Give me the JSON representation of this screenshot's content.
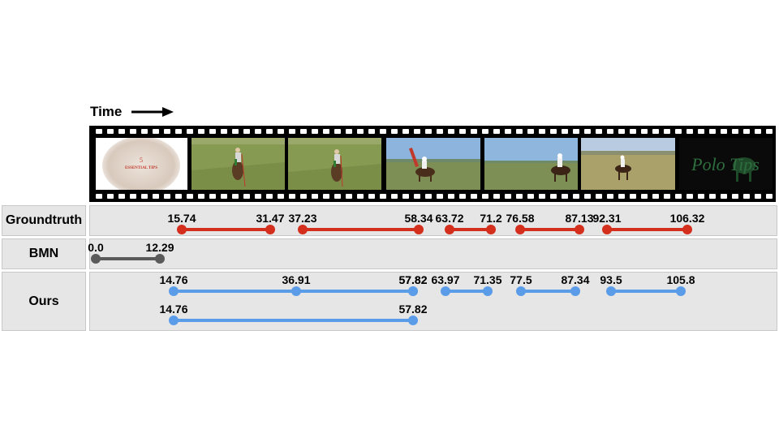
{
  "header": {
    "time_label": "Time"
  },
  "rows": [
    {
      "label": "Groundtruth",
      "color": "#d42e1d",
      "segments": [
        [
          [
            15.74,
            31.47
          ],
          [
            37.23,
            58.34
          ],
          [
            63.72,
            71.2
          ],
          [
            76.58,
            87.13
          ],
          [
            92.31,
            106.32
          ]
        ]
      ]
    },
    {
      "label": "BMN",
      "color": "#5a5a5a",
      "segments": [
        [
          [
            0.0,
            12.29
          ]
        ]
      ]
    },
    {
      "label": "Ours",
      "color": "#5b9ce8",
      "segments": [
        [
          [
            14.76,
            57.82
          ],
          [
            36.91,
            57.82
          ],
          [
            63.97,
            71.35
          ],
          [
            77.5,
            87.34
          ],
          [
            93.5,
            105.8
          ]
        ],
        [
          [
            14.76,
            57.82
          ]
        ]
      ]
    }
  ],
  "segment_labels": {
    "Groundtruth": [
      [
        "15.74",
        "31.47"
      ],
      [
        "37.23",
        "58.34"
      ],
      [
        "63.72",
        "71.2"
      ],
      [
        "76.58",
        "87.13"
      ],
      [
        "92.31",
        "106.32"
      ]
    ],
    "BMN": [
      [
        "0.0",
        "12.29"
      ]
    ],
    "Ours": [
      [
        "14.76",
        "57.82"
      ],
      [
        "36.91",
        "57.82"
      ],
      [
        "63.97",
        "71.35"
      ],
      [
        "77.5",
        "87.34"
      ],
      [
        "93.5",
        "105.8"
      ],
      [
        "14.76",
        "57.82"
      ]
    ]
  },
  "frames": [
    {
      "caption_line1": "5",
      "caption_line2": "ESSENTIAL TIPS"
    },
    {},
    {},
    {},
    {},
    {},
    {
      "logo_text": "Polo Tips"
    }
  ],
  "colors": {
    "row_bg": "#e6e6e6",
    "film": "#000000"
  }
}
